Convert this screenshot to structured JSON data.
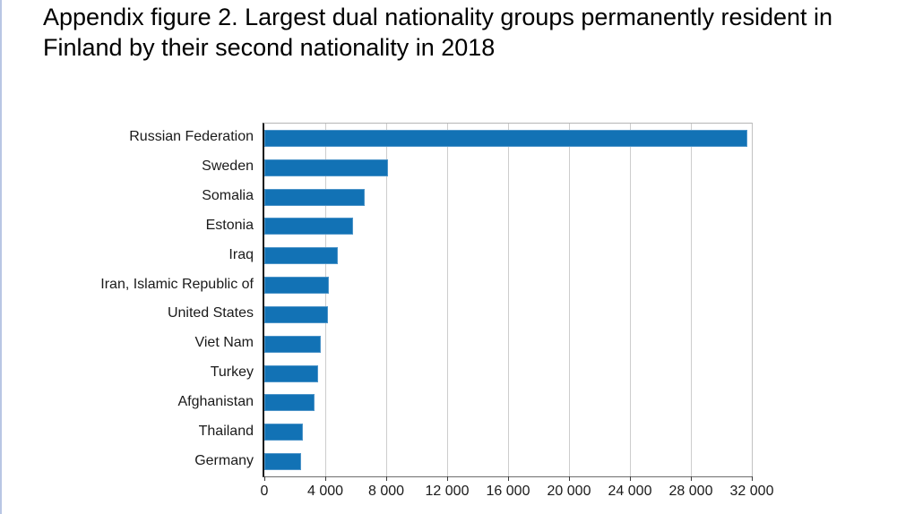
{
  "page": {
    "title": "Appendix figure 2. Largest dual nationality groups permanently resident in Finland by their second nationality in 2018"
  },
  "chart_data": {
    "type": "bar",
    "orientation": "horizontal",
    "title": "Appendix figure 2. Largest dual nationality groups permanently resident in Finland by their second nationality in 2018",
    "categories": [
      "Russian Federation",
      "Sweden",
      "Somalia",
      "Estonia",
      "Iraq",
      "Iran, Islamic Republic of",
      "United States",
      "Viet Nam",
      "Turkey",
      "Afghanistan",
      "Thailand",
      "Germany"
    ],
    "values": [
      31700,
      8100,
      6600,
      5800,
      4800,
      4250,
      4200,
      3700,
      3550,
      3300,
      2550,
      2400
    ],
    "xlabel": "",
    "ylabel": "",
    "xlim": [
      0,
      32000
    ],
    "xticks": [
      0,
      4000,
      8000,
      12000,
      16000,
      20000,
      24000,
      28000,
      32000
    ],
    "xtick_labels": [
      "0",
      "4 000",
      "8 000",
      "12 000",
      "16 000",
      "20 000",
      "24 000",
      "28 000",
      "32 000"
    ],
    "grid": true,
    "legend_position": "none",
    "bar_color": "#1272b5",
    "bar_border_color": "#4e95c9",
    "background_color": "#ffffff"
  }
}
